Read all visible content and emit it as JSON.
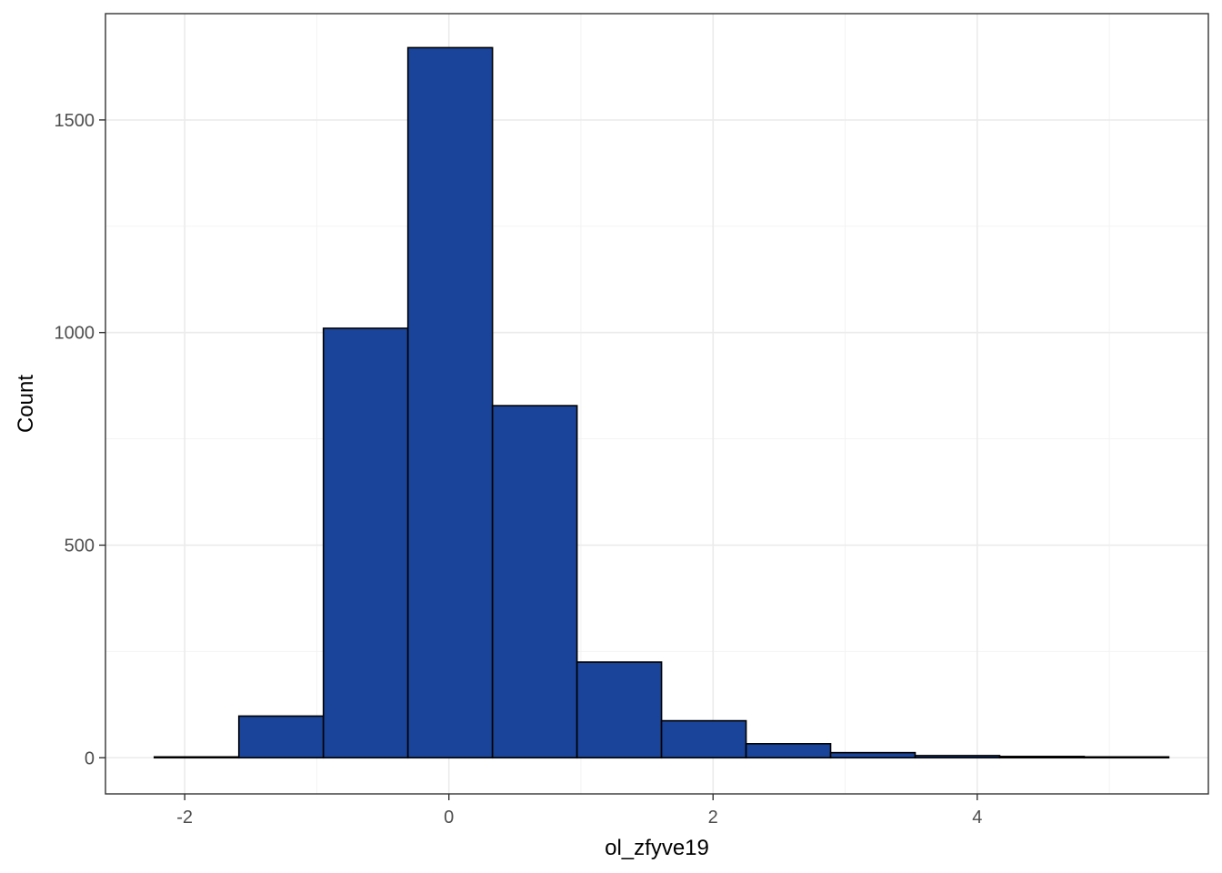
{
  "chart_data": {
    "type": "bar",
    "subtype": "histogram",
    "xlabel": "ol_zfyve19",
    "ylabel": "Count",
    "xlim": [
      -2.6,
      5.75
    ],
    "ylim": [
      -85,
      1750
    ],
    "x_major_ticks": [
      -2,
      0,
      2,
      4
    ],
    "x_tick_labels": [
      "-2",
      "0",
      "2",
      "4"
    ],
    "x_minor_ticks": [
      -1,
      1,
      3,
      5
    ],
    "y_major_ticks": [
      0,
      500,
      1000,
      1500
    ],
    "y_tick_labels": [
      "0",
      "500",
      "1000",
      "1500"
    ],
    "y_minor_ticks": [
      250,
      750,
      1250,
      1750
    ],
    "grid": true,
    "bar_color": "#1a4499",
    "bar_outline": "#000000",
    "bins": [
      {
        "x0": -2.23,
        "x1": -1.59,
        "count": 2
      },
      {
        "x0": -1.59,
        "x1": -0.95,
        "count": 98
      },
      {
        "x0": -0.95,
        "x1": -0.31,
        "count": 1010
      },
      {
        "x0": -0.31,
        "x1": 0.33,
        "count": 1670
      },
      {
        "x0": 0.33,
        "x1": 0.97,
        "count": 828
      },
      {
        "x0": 0.97,
        "x1": 1.61,
        "count": 225
      },
      {
        "x0": 1.61,
        "x1": 2.25,
        "count": 87
      },
      {
        "x0": 2.25,
        "x1": 2.89,
        "count": 33
      },
      {
        "x0": 2.89,
        "x1": 3.53,
        "count": 12
      },
      {
        "x0": 3.53,
        "x1": 4.17,
        "count": 5
      },
      {
        "x0": 4.17,
        "x1": 4.81,
        "count": 3
      },
      {
        "x0": 4.81,
        "x1": 5.45,
        "count": 2
      }
    ]
  }
}
